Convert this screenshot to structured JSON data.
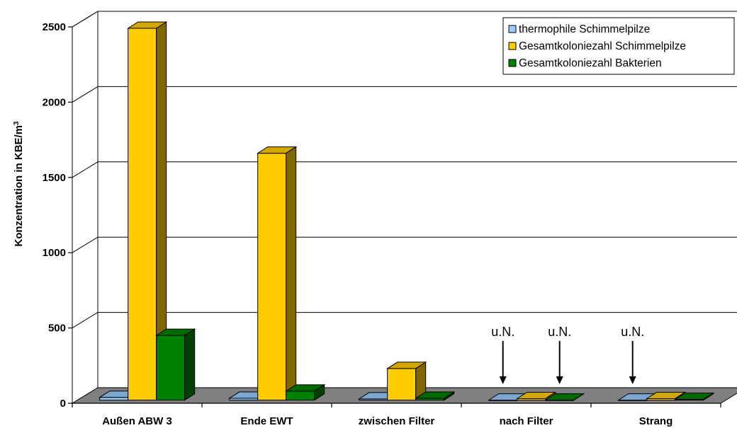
{
  "chart_data": {
    "type": "bar",
    "ylabel": "Konzentration in KBE/m",
    "ylabel_sup": "3",
    "ylim": [
      0,
      2500
    ],
    "yticks": [
      "0",
      "500",
      "1000",
      "1500",
      "2000",
      "2500"
    ],
    "grid": true,
    "legend_position": "top-right",
    "categories": [
      "Außen ABW 3",
      "Ende EWT",
      "zwischen Filter",
      "nach Filter",
      "Strang"
    ],
    "series": [
      {
        "name": "thermophile Schimmelpilze",
        "color": "#99ccff",
        "values": [
          18,
          12,
          8,
          0,
          0
        ]
      },
      {
        "name": "Gesamtkoloniezahl Schimmelpilze",
        "color": "#ffcc00",
        "values": [
          2470,
          1640,
          210,
          10,
          10
        ]
      },
      {
        "name": "Gesamtkoloniezahl Bakterien",
        "color": "#008000",
        "values": [
          430,
          60,
          12,
          0,
          5
        ]
      }
    ],
    "annotations": [
      {
        "text": "u.N.",
        "category": "nach Filter",
        "series": "thermophile Schimmelpilze"
      },
      {
        "text": "u.N.",
        "category": "nach Filter",
        "series": "Gesamtkoloniezahl Bakterien"
      },
      {
        "text": "u.N.",
        "category": "Strang",
        "series": "thermophile Schimmelpilze"
      }
    ]
  }
}
